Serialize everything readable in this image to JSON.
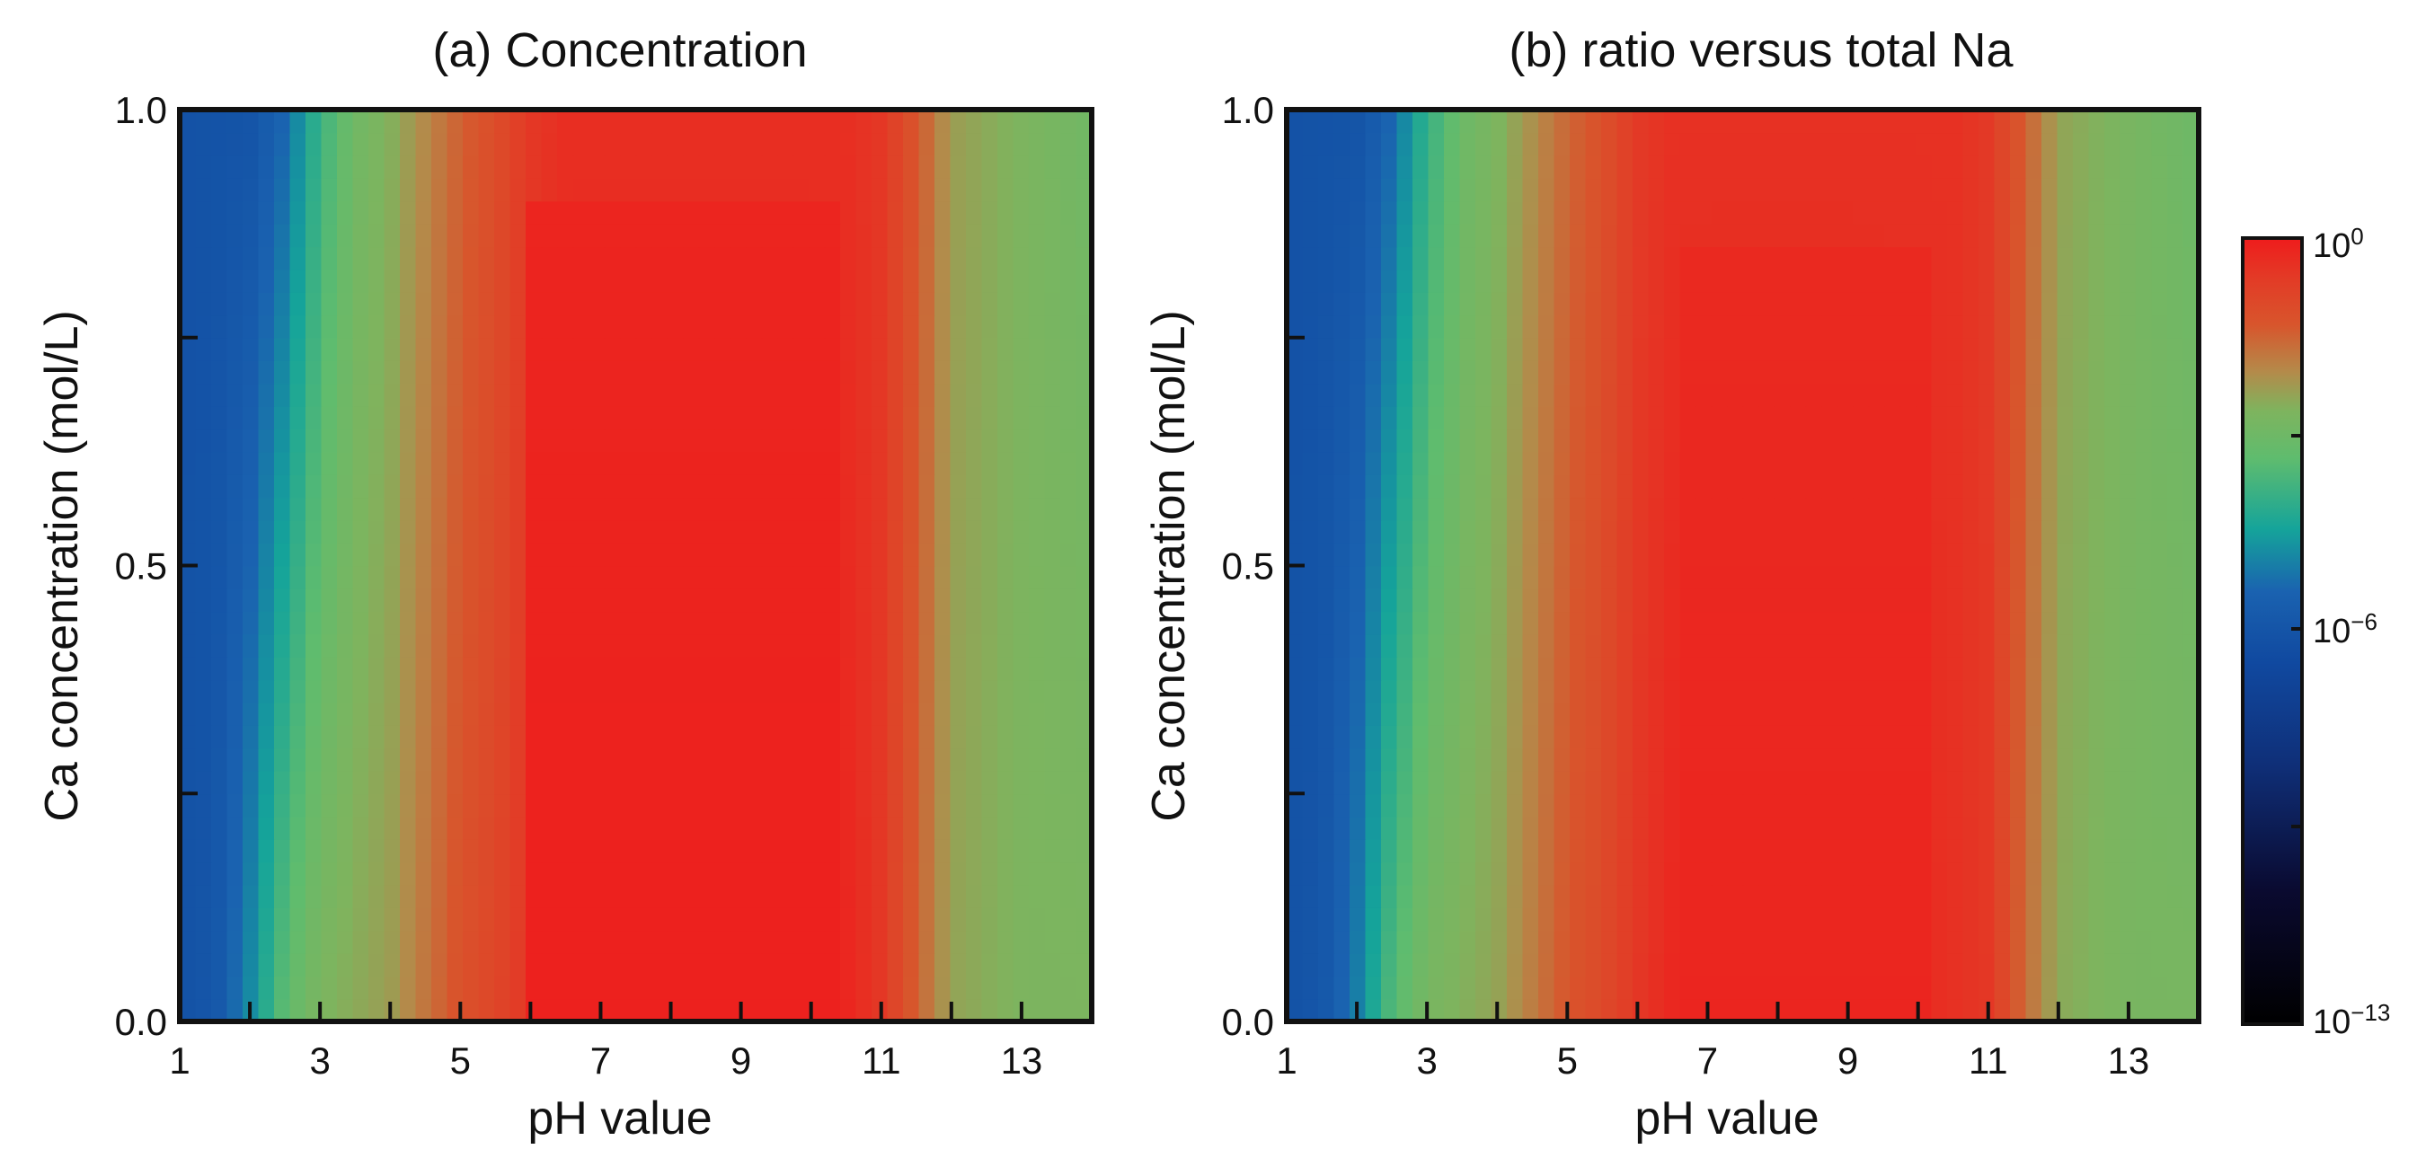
{
  "chart_data": [
    {
      "type": "heatmap",
      "panel": "a",
      "title": "(a) Concentration",
      "xlabel": "pH value",
      "ylabel": "Ca concentration (mol/L)",
      "xlim": [
        1,
        14
      ],
      "ylim": [
        0.0,
        1.0
      ],
      "xticks": [
        "1",
        "3",
        "5",
        "7",
        "9",
        "11",
        "13"
      ],
      "yticks": [
        "0.0",
        "0.5",
        "1.0"
      ],
      "z_scale": "log10",
      "description_bands": "log10 value by pH (x) and Ca concentration (y)",
      "profile_low_ca": {
        "ph": [
          1.0,
          1.5,
          2.0,
          2.5,
          3.0,
          4.0,
          5.0,
          5.5,
          6.0,
          6.5,
          7.0,
          9.0,
          10.5,
          11.0,
          11.5,
          12.0,
          13.0,
          14.0
        ],
        "log10_value": [
          -6.6,
          -6.4,
          -5.2,
          -3.6,
          -2.9,
          -2.5,
          -1.3,
          -1.0,
          -0.55,
          -0.15,
          -0.1,
          -0.1,
          -0.2,
          -0.6,
          -1.6,
          -2.6,
          -2.9,
          -2.9
        ]
      },
      "profile_high_ca": {
        "ph": [
          1.0,
          2.0,
          2.5,
          3.0,
          3.5,
          4.0,
          5.0,
          5.5,
          6.0,
          6.5,
          10.5,
          11.0,
          11.5,
          12.0,
          13.0,
          14.0
        ],
        "log10_value": [
          -6.6,
          -6.5,
          -5.8,
          -4.2,
          -3.2,
          -2.8,
          -1.6,
          -1.2,
          -0.6,
          -0.4,
          -0.4,
          -0.6,
          -1.4,
          -2.5,
          -2.9,
          -3.2
        ]
      },
      "max_region": {
        "ph": [
          6.0,
          10.5
        ],
        "ca_below": 0.9,
        "log10_value": -0.1
      }
    },
    {
      "type": "heatmap",
      "panel": "b",
      "title": "(b) ratio versus total Na",
      "xlabel": "pH value",
      "ylabel": "Ca concentration (mol/L)",
      "xlim": [
        1,
        14
      ],
      "ylim": [
        0.0,
        1.0
      ],
      "xticks": [
        "1",
        "3",
        "5",
        "7",
        "9",
        "11",
        "13"
      ],
      "yticks": [
        "0.0",
        "0.5",
        "1.0"
      ],
      "z_scale": "log10",
      "profile_low_ca": {
        "ph": [
          1.0,
          1.5,
          2.0,
          2.5,
          3.0,
          4.0,
          5.0,
          5.5,
          6.0,
          6.5,
          7.0,
          9.0,
          10.0,
          11.0,
          11.5,
          12.0,
          13.0,
          14.0
        ],
        "log10_value": [
          -6.6,
          -6.4,
          -5.4,
          -3.8,
          -3.0,
          -2.6,
          -1.4,
          -1.1,
          -0.6,
          -0.25,
          -0.2,
          -0.2,
          -0.3,
          -0.6,
          -1.7,
          -2.7,
          -3.0,
          -3.0
        ]
      },
      "profile_high_ca": {
        "ph": [
          1.0,
          2.0,
          2.5,
          3.0,
          3.5,
          4.0,
          5.0,
          5.5,
          6.0,
          6.5,
          10.5,
          11.0,
          11.5,
          12.0,
          13.0,
          14.0
        ],
        "log10_value": [
          -6.6,
          -6.5,
          -5.8,
          -4.3,
          -3.3,
          -2.9,
          -1.7,
          -1.3,
          -0.65,
          -0.45,
          -0.45,
          -0.65,
          -1.5,
          -2.6,
          -3.0,
          -3.3
        ]
      },
      "max_region": {
        "ph": [
          6.5,
          10.3
        ],
        "ca_below": 0.85,
        "log10_value": -0.2
      }
    }
  ],
  "colorbar": {
    "label_top": "10",
    "label_top_exp": "0",
    "label_mid": "10",
    "label_mid_exp": "−6",
    "label_bottom": "10",
    "label_bottom_exp": "−13",
    "range_log10": [
      -13,
      0
    ],
    "stops": [
      {
        "v": 0,
        "color": "#000000"
      },
      {
        "v": 0.17,
        "color": "#0a0a30"
      },
      {
        "v": 0.33,
        "color": "#0f2f78"
      },
      {
        "v": 0.46,
        "color": "#1049a0"
      },
      {
        "v": 0.55,
        "color": "#1a62b0"
      },
      {
        "v": 0.63,
        "color": "#15a49a"
      },
      {
        "v": 0.72,
        "color": "#5fbc6e"
      },
      {
        "v": 0.78,
        "color": "#7eb45e"
      },
      {
        "v": 0.83,
        "color": "#b48a4a"
      },
      {
        "v": 0.89,
        "color": "#d8552c"
      },
      {
        "v": 0.95,
        "color": "#e33a26"
      },
      {
        "v": 1,
        "color": "#ef1c1c"
      }
    ]
  }
}
